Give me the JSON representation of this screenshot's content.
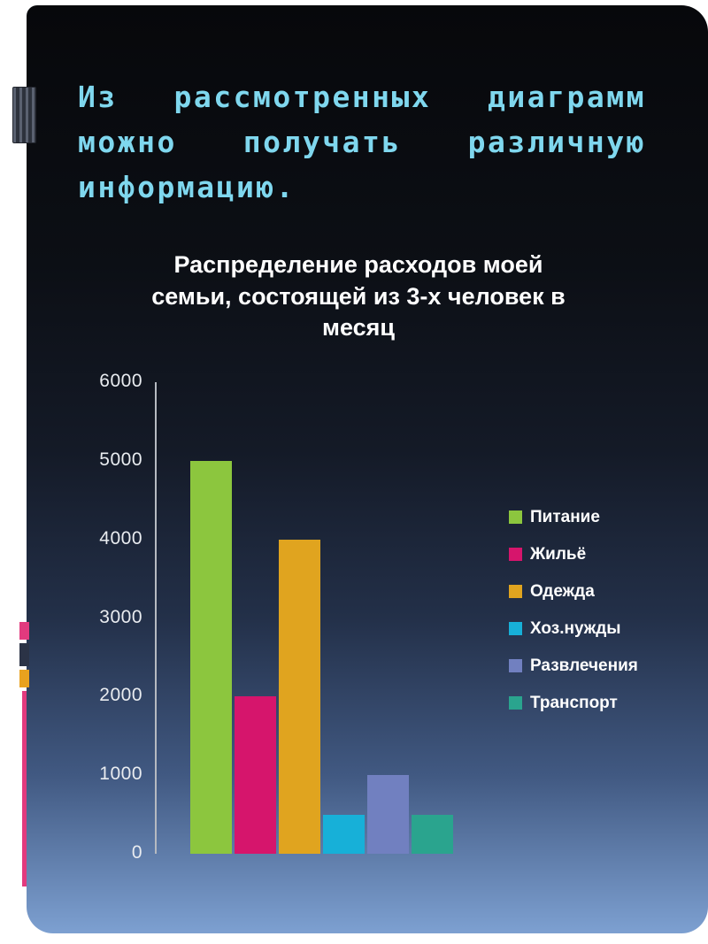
{
  "slide": {
    "title": "Из рассмотренных диаграмм можно получать различную информацию.",
    "title_color": "#7fd7ee",
    "background_top": "#07080b",
    "background_bottom": "#7da0d1"
  },
  "decorations": {
    "book_icon": "book-spine-icon",
    "accent_colors": [
      "#e23a7e",
      "#2b3346",
      "#e8a21f",
      "#e23a7e"
    ]
  },
  "chart_data": {
    "type": "bar",
    "title": "Распределение расходов моей семьи, состоящей из 3-х человек в месяц",
    "title_lines": [
      "Распределение расходов моей",
      "семьи, состоящей из 3-х человек в",
      "месяц"
    ],
    "categories": [
      "Питание",
      "Жильё",
      "Одежда",
      "Хоз.нужды",
      "Развлечения",
      "Транспорт"
    ],
    "values": [
      5000,
      2000,
      4000,
      500,
      1000,
      500
    ],
    "colors": [
      "#8cc63e",
      "#d6156c",
      "#e0a41f",
      "#17b0d8",
      "#7180c0",
      "#2aa48e"
    ],
    "ylim": [
      0,
      6000
    ],
    "yticks": [
      6000,
      5000,
      4000,
      3000,
      2000,
      1000,
      0
    ],
    "xlabel": "",
    "ylabel": "",
    "grid": false,
    "legend_position": "right"
  }
}
